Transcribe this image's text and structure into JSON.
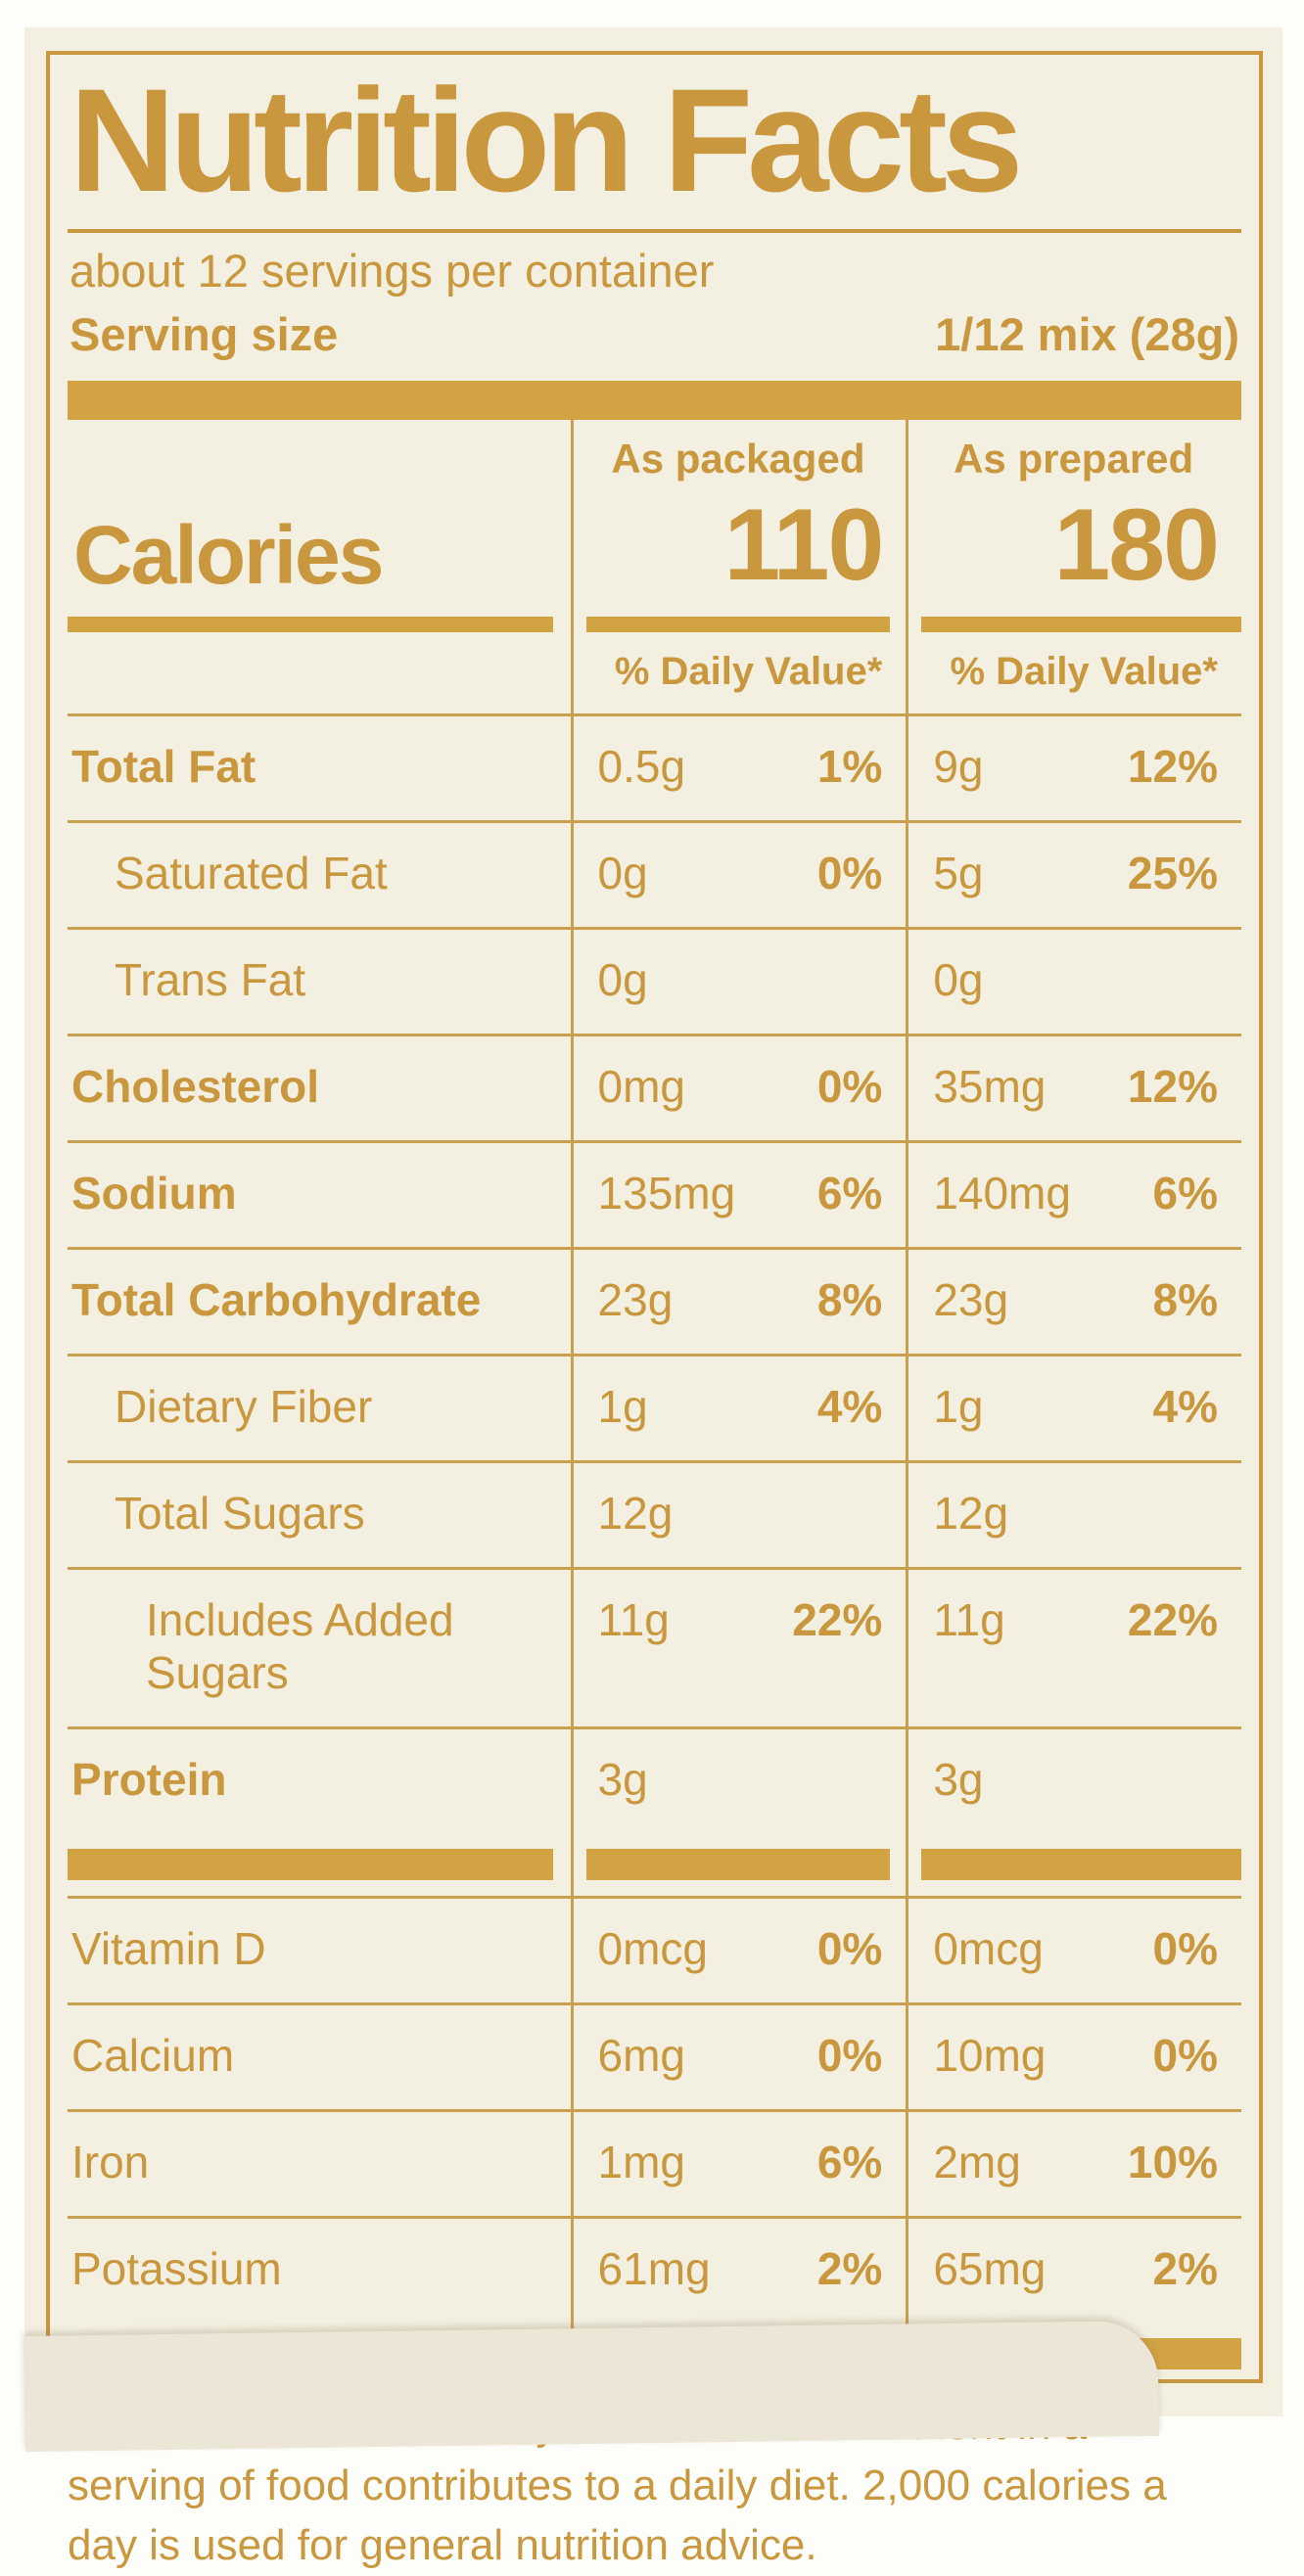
{
  "colors": {
    "gold_text": "#c9973d",
    "gold_bar": "#d2a343",
    "hairline": "#c9a04f",
    "label_background": "#f3f0e2",
    "curl_shade": "#ebe6d5"
  },
  "header": {
    "title": "Nutrition Facts",
    "servings_per_container": "about 12 servings per container",
    "serving_size_label": "Serving size",
    "serving_size_value": "1/12 mix (28g)"
  },
  "calories": {
    "row_label": "Calories",
    "col_packaged_header": "As packaged",
    "col_prepared_header": "As prepared",
    "packaged_value": "110",
    "prepared_value": "180",
    "dv_header": "% Daily Value*"
  },
  "nutrients": [
    {
      "name": "Total Fat",
      "bold": true,
      "indent": 0,
      "packaged_amount": "0.5g",
      "packaged_dv": "1%",
      "prepared_amount": "9g",
      "prepared_dv": "12%"
    },
    {
      "name": "Saturated Fat",
      "bold": false,
      "indent": 1,
      "packaged_amount": "0g",
      "packaged_dv": "0%",
      "prepared_amount": "5g",
      "prepared_dv": "25%"
    },
    {
      "name": "Trans Fat",
      "bold": false,
      "indent": 1,
      "packaged_amount": "0g",
      "packaged_dv": "",
      "prepared_amount": "0g",
      "prepared_dv": ""
    },
    {
      "name": "Cholesterol",
      "bold": true,
      "indent": 0,
      "packaged_amount": "0mg",
      "packaged_dv": "0%",
      "prepared_amount": "35mg",
      "prepared_dv": "12%"
    },
    {
      "name": "Sodium",
      "bold": true,
      "indent": 0,
      "packaged_amount": "135mg",
      "packaged_dv": "6%",
      "prepared_amount": "140mg",
      "prepared_dv": "6%"
    },
    {
      "name": "Total Carbohydrate",
      "bold": true,
      "indent": 0,
      "packaged_amount": "23g",
      "packaged_dv": "8%",
      "prepared_amount": "23g",
      "prepared_dv": "8%"
    },
    {
      "name": "Dietary Fiber",
      "bold": false,
      "indent": 1,
      "packaged_amount": "1g",
      "packaged_dv": "4%",
      "prepared_amount": "1g",
      "prepared_dv": "4%"
    },
    {
      "name": "Total Sugars",
      "bold": false,
      "indent": 1,
      "packaged_amount": "12g",
      "packaged_dv": "",
      "prepared_amount": "12g",
      "prepared_dv": ""
    },
    {
      "name": "Includes Added Sugars",
      "bold": false,
      "indent": 2,
      "packaged_amount": "11g",
      "packaged_dv": "22%",
      "prepared_amount": "11g",
      "prepared_dv": "22%"
    },
    {
      "name": "Protein",
      "bold": true,
      "indent": 0,
      "packaged_amount": "3g",
      "packaged_dv": "",
      "prepared_amount": "3g",
      "prepared_dv": ""
    }
  ],
  "vitamins": [
    {
      "name": "Vitamin D",
      "bold": false,
      "indent": 0,
      "packaged_amount": "0mcg",
      "packaged_dv": "0%",
      "prepared_amount": "0mcg",
      "prepared_dv": "0%"
    },
    {
      "name": "Calcium",
      "bold": false,
      "indent": 0,
      "packaged_amount": "6mg",
      "packaged_dv": "0%",
      "prepared_amount": "10mg",
      "prepared_dv": "0%"
    },
    {
      "name": "Iron",
      "bold": false,
      "indent": 0,
      "packaged_amount": "1mg",
      "packaged_dv": "6%",
      "prepared_amount": "2mg",
      "prepared_dv": "10%"
    },
    {
      "name": "Potassium",
      "bold": false,
      "indent": 0,
      "packaged_amount": "61mg",
      "packaged_dv": "2%",
      "prepared_amount": "65mg",
      "prepared_dv": "2%"
    }
  ],
  "footnote": "*The % Daily Value tells you how much a nutrient in a serving of food contributes to a daily diet. 2,000 calories a day is used for general nutrition advice."
}
